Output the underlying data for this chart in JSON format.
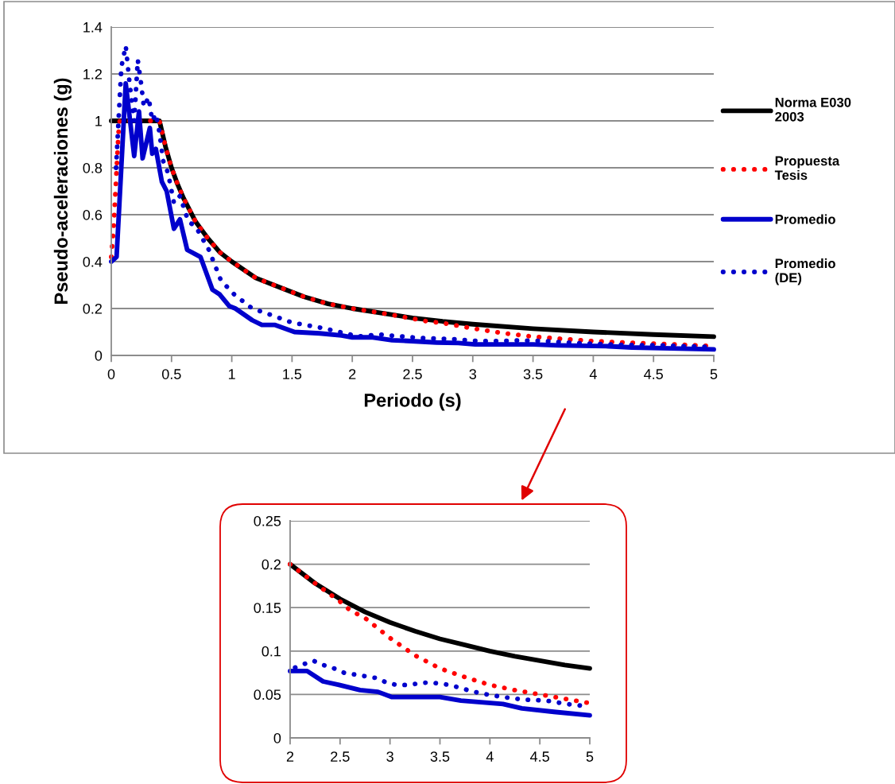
{
  "chart_data": [
    {
      "type": "line",
      "xlabel": "Periodo (s)",
      "ylabel": "Pseudo-aceleraciones (g)",
      "xlim": [
        0,
        5
      ],
      "ylim": [
        0,
        1.4
      ],
      "xticks": [
        0,
        0.5,
        1,
        1.5,
        2,
        2.5,
        3,
        3.5,
        4,
        4.5,
        5
      ],
      "yticks": [
        0,
        0.2,
        0.4,
        0.6,
        0.8,
        1,
        1.2,
        1.4
      ],
      "grid": "y",
      "legend": "right",
      "series": [
        {
          "name": "Norma E030\n2003",
          "color": "#000000",
          "line_style": "solid",
          "x": [
            0,
            0.4,
            0.45,
            0.5,
            0.55,
            0.6,
            0.7,
            0.8,
            0.9,
            1,
            1.2,
            1.4,
            1.6,
            1.8,
            2,
            2.25,
            2.5,
            2.75,
            3,
            3.5,
            4,
            4.5,
            5
          ],
          "values": [
            1,
            1,
            0.89,
            0.8,
            0.73,
            0.67,
            0.57,
            0.5,
            0.44,
            0.4,
            0.33,
            0.29,
            0.25,
            0.22,
            0.2,
            0.18,
            0.16,
            0.145,
            0.133,
            0.114,
            0.1,
            0.089,
            0.08
          ]
        },
        {
          "name": "Propuesta\nTesis",
          "color": "#ff0000",
          "line_style": "dotted",
          "x": [
            0,
            0.02,
            0.04,
            0.06,
            0.07,
            0.4,
            0.45,
            0.5,
            0.55,
            0.6,
            0.7,
            0.8,
            0.9,
            1,
            1.2,
            1.4,
            1.6,
            1.8,
            2,
            2.25,
            2.5,
            2.6,
            2.75,
            3,
            3.25,
            3.5,
            3.75,
            4,
            4.25,
            4.5,
            4.75,
            5
          ],
          "values": [
            0.42,
            0.55,
            0.75,
            0.95,
            1,
            1,
            0.89,
            0.8,
            0.73,
            0.67,
            0.57,
            0.5,
            0.44,
            0.4,
            0.33,
            0.29,
            0.25,
            0.22,
            0.2,
            0.18,
            0.157,
            0.147,
            0.138,
            0.115,
            0.095,
            0.08,
            0.07,
            0.061,
            0.055,
            0.05,
            0.045,
            0.04
          ]
        },
        {
          "name": "Promedio",
          "color": "#0000cc",
          "line_style": "solid",
          "x": [
            0,
            0.044,
            0.12,
            0.19,
            0.23,
            0.26,
            0.32,
            0.34,
            0.37,
            0.42,
            0.46,
            0.52,
            0.57,
            0.63,
            0.74,
            0.84,
            0.9,
            0.98,
            1.03,
            1.17,
            1.25,
            1.36,
            1.52,
            1.73,
            1.91,
            2,
            2.17,
            2.33,
            2.49,
            2.7,
            2.88,
            3.02,
            3.5,
            3.71,
            4.13,
            4.32,
            4.64,
            5
          ],
          "values": [
            0.4,
            0.42,
            1.16,
            0.85,
            1.04,
            0.84,
            0.97,
            0.86,
            0.88,
            0.74,
            0.7,
            0.54,
            0.58,
            0.45,
            0.42,
            0.28,
            0.26,
            0.21,
            0.2,
            0.15,
            0.13,
            0.13,
            0.1,
            0.094,
            0.085,
            0.077,
            0.077,
            0.065,
            0.061,
            0.055,
            0.053,
            0.047,
            0.047,
            0.043,
            0.039,
            0.034,
            0.03,
            0.026
          ]
        },
        {
          "name": "Promedio\n(DE)",
          "color": "#0000cc",
          "line_style": "dotted",
          "x": [
            0.04,
            0.06,
            0.084,
            0.12,
            0.14,
            0.15,
            0.19,
            0.22,
            0.25,
            0.27,
            0.31,
            0.34,
            0.37,
            0.4,
            0.43,
            0.47,
            0.52,
            0.57,
            0.64,
            0.7,
            0.81,
            0.91,
            1.02,
            1.17,
            1.34,
            1.5,
            1.77,
            2.05,
            2.14,
            2.23,
            2.33,
            2.44,
            2.54,
            2.75,
            2.86,
            2.96,
            3.06,
            3.17,
            3.39,
            3.6,
            3.81,
            3.92,
            4.13,
            4.34,
            4.56,
            4.77,
            5
          ],
          "values": [
            0.8,
            1,
            1.23,
            1.32,
            1.22,
            1.17,
            1,
            1.26,
            1.15,
            1.06,
            1.1,
            1,
            1.03,
            0.95,
            0.83,
            0.78,
            0.65,
            0.68,
            0.57,
            0.55,
            0.45,
            0.32,
            0.26,
            0.2,
            0.17,
            0.14,
            0.115,
            0.081,
            0.085,
            0.089,
            0.084,
            0.08,
            0.075,
            0.071,
            0.069,
            0.064,
            0.061,
            0.061,
            0.064,
            0.061,
            0.054,
            0.051,
            0.047,
            0.044,
            0.043,
            0.039,
            0.036
          ]
        }
      ]
    },
    {
      "type": "line",
      "xlim": [
        2,
        5
      ],
      "ylim": [
        0,
        0.25
      ],
      "xticks": [
        2,
        2.5,
        3,
        3.5,
        4,
        4.5,
        5
      ],
      "yticks": [
        0,
        0.05,
        0.1,
        0.15,
        0.2,
        0.25
      ],
      "grid": "y",
      "series": [
        {
          "color": "#000000",
          "line_style": "solid",
          "x": [
            2,
            2.25,
            2.5,
            2.75,
            3,
            3.25,
            3.5,
            3.75,
            4,
            4.25,
            4.5,
            4.75,
            5
          ],
          "values": [
            0.2,
            0.178,
            0.16,
            0.145,
            0.133,
            0.123,
            0.114,
            0.107,
            0.1,
            0.094,
            0.089,
            0.084,
            0.08
          ]
        },
        {
          "color": "#ff0000",
          "line_style": "dotted",
          "x": [
            2,
            2.25,
            2.5,
            2.6,
            2.75,
            3,
            3.25,
            3.5,
            3.75,
            4,
            4.25,
            4.5,
            4.75,
            5
          ],
          "values": [
            0.2,
            0.178,
            0.157,
            0.147,
            0.138,
            0.115,
            0.095,
            0.08,
            0.07,
            0.061,
            0.055,
            0.05,
            0.045,
            0.04
          ]
        },
        {
          "color": "#0000cc",
          "line_style": "solid",
          "x": [
            2,
            2.17,
            2.33,
            2.49,
            2.7,
            2.88,
            3.02,
            3.5,
            3.71,
            4.13,
            4.32,
            4.64,
            5
          ],
          "values": [
            0.077,
            0.077,
            0.065,
            0.061,
            0.055,
            0.053,
            0.047,
            0.047,
            0.043,
            0.039,
            0.034,
            0.03,
            0.026
          ]
        },
        {
          "color": "#0000cc",
          "line_style": "dotted",
          "x": [
            2.05,
            2.14,
            2.23,
            2.33,
            2.44,
            2.54,
            2.75,
            2.86,
            2.96,
            3.06,
            3.17,
            3.39,
            3.6,
            3.81,
            3.92,
            4.13,
            4.34,
            4.56,
            4.77,
            5
          ],
          "values": [
            0.081,
            0.085,
            0.089,
            0.084,
            0.08,
            0.075,
            0.071,
            0.069,
            0.064,
            0.061,
            0.061,
            0.064,
            0.061,
            0.054,
            0.051,
            0.047,
            0.044,
            0.043,
            0.039,
            0.036
          ]
        }
      ]
    }
  ]
}
